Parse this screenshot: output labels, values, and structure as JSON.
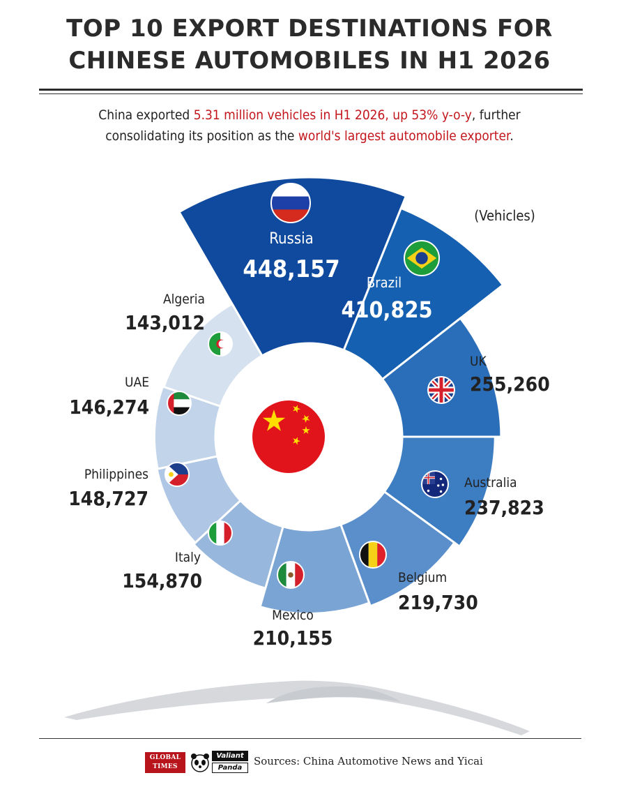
{
  "header": {
    "title_line1": "TOP 10 EXPORT DESTINATIONS FOR",
    "title_line2": "CHINESE AUTOMOBILES IN H1 2026",
    "subtitle_part1": "China exported ",
    "subtitle_highlight1": "5.31 million vehicles in H1 2026, up 53% y-o-y",
    "subtitle_part2": ", further",
    "subtitle_part3": "consolidating its position as the ",
    "subtitle_highlight2": "world's largest automobile exporter",
    "subtitle_part4": "."
  },
  "chart_data": {
    "type": "bar",
    "subtype": "polar-bar",
    "unit_label": "(Vehicles)",
    "center": "China",
    "categories": [
      "Russia",
      "Brazil",
      "UK",
      "Australia",
      "Belgium",
      "Mexico",
      "Italy",
      "Philippines",
      "UAE",
      "Algeria"
    ],
    "values": [
      448157,
      410825,
      255260,
      237823,
      219730,
      210155,
      154870,
      148727,
      146274,
      143012
    ],
    "labels": [
      "448,157",
      "410,825",
      "255,260",
      "237,823",
      "219,730",
      "210,155",
      "154,870",
      "148,727",
      "146,274",
      "143,012"
    ],
    "colors": [
      "#0f4a9e",
      "#1560b0",
      "#2a6db8",
      "#3d7dc2",
      "#5b8fcb",
      "#7aa4d4",
      "#97b7dc",
      "#afc7e4",
      "#c2d4ea",
      "#d5e1ef"
    ]
  },
  "footer": {
    "logo1": "GLOBAL TIMES",
    "logo2_line1": "Valiant",
    "logo2_line2": "Panda",
    "sources": "Sources: China Automotive News and Yicai"
  }
}
